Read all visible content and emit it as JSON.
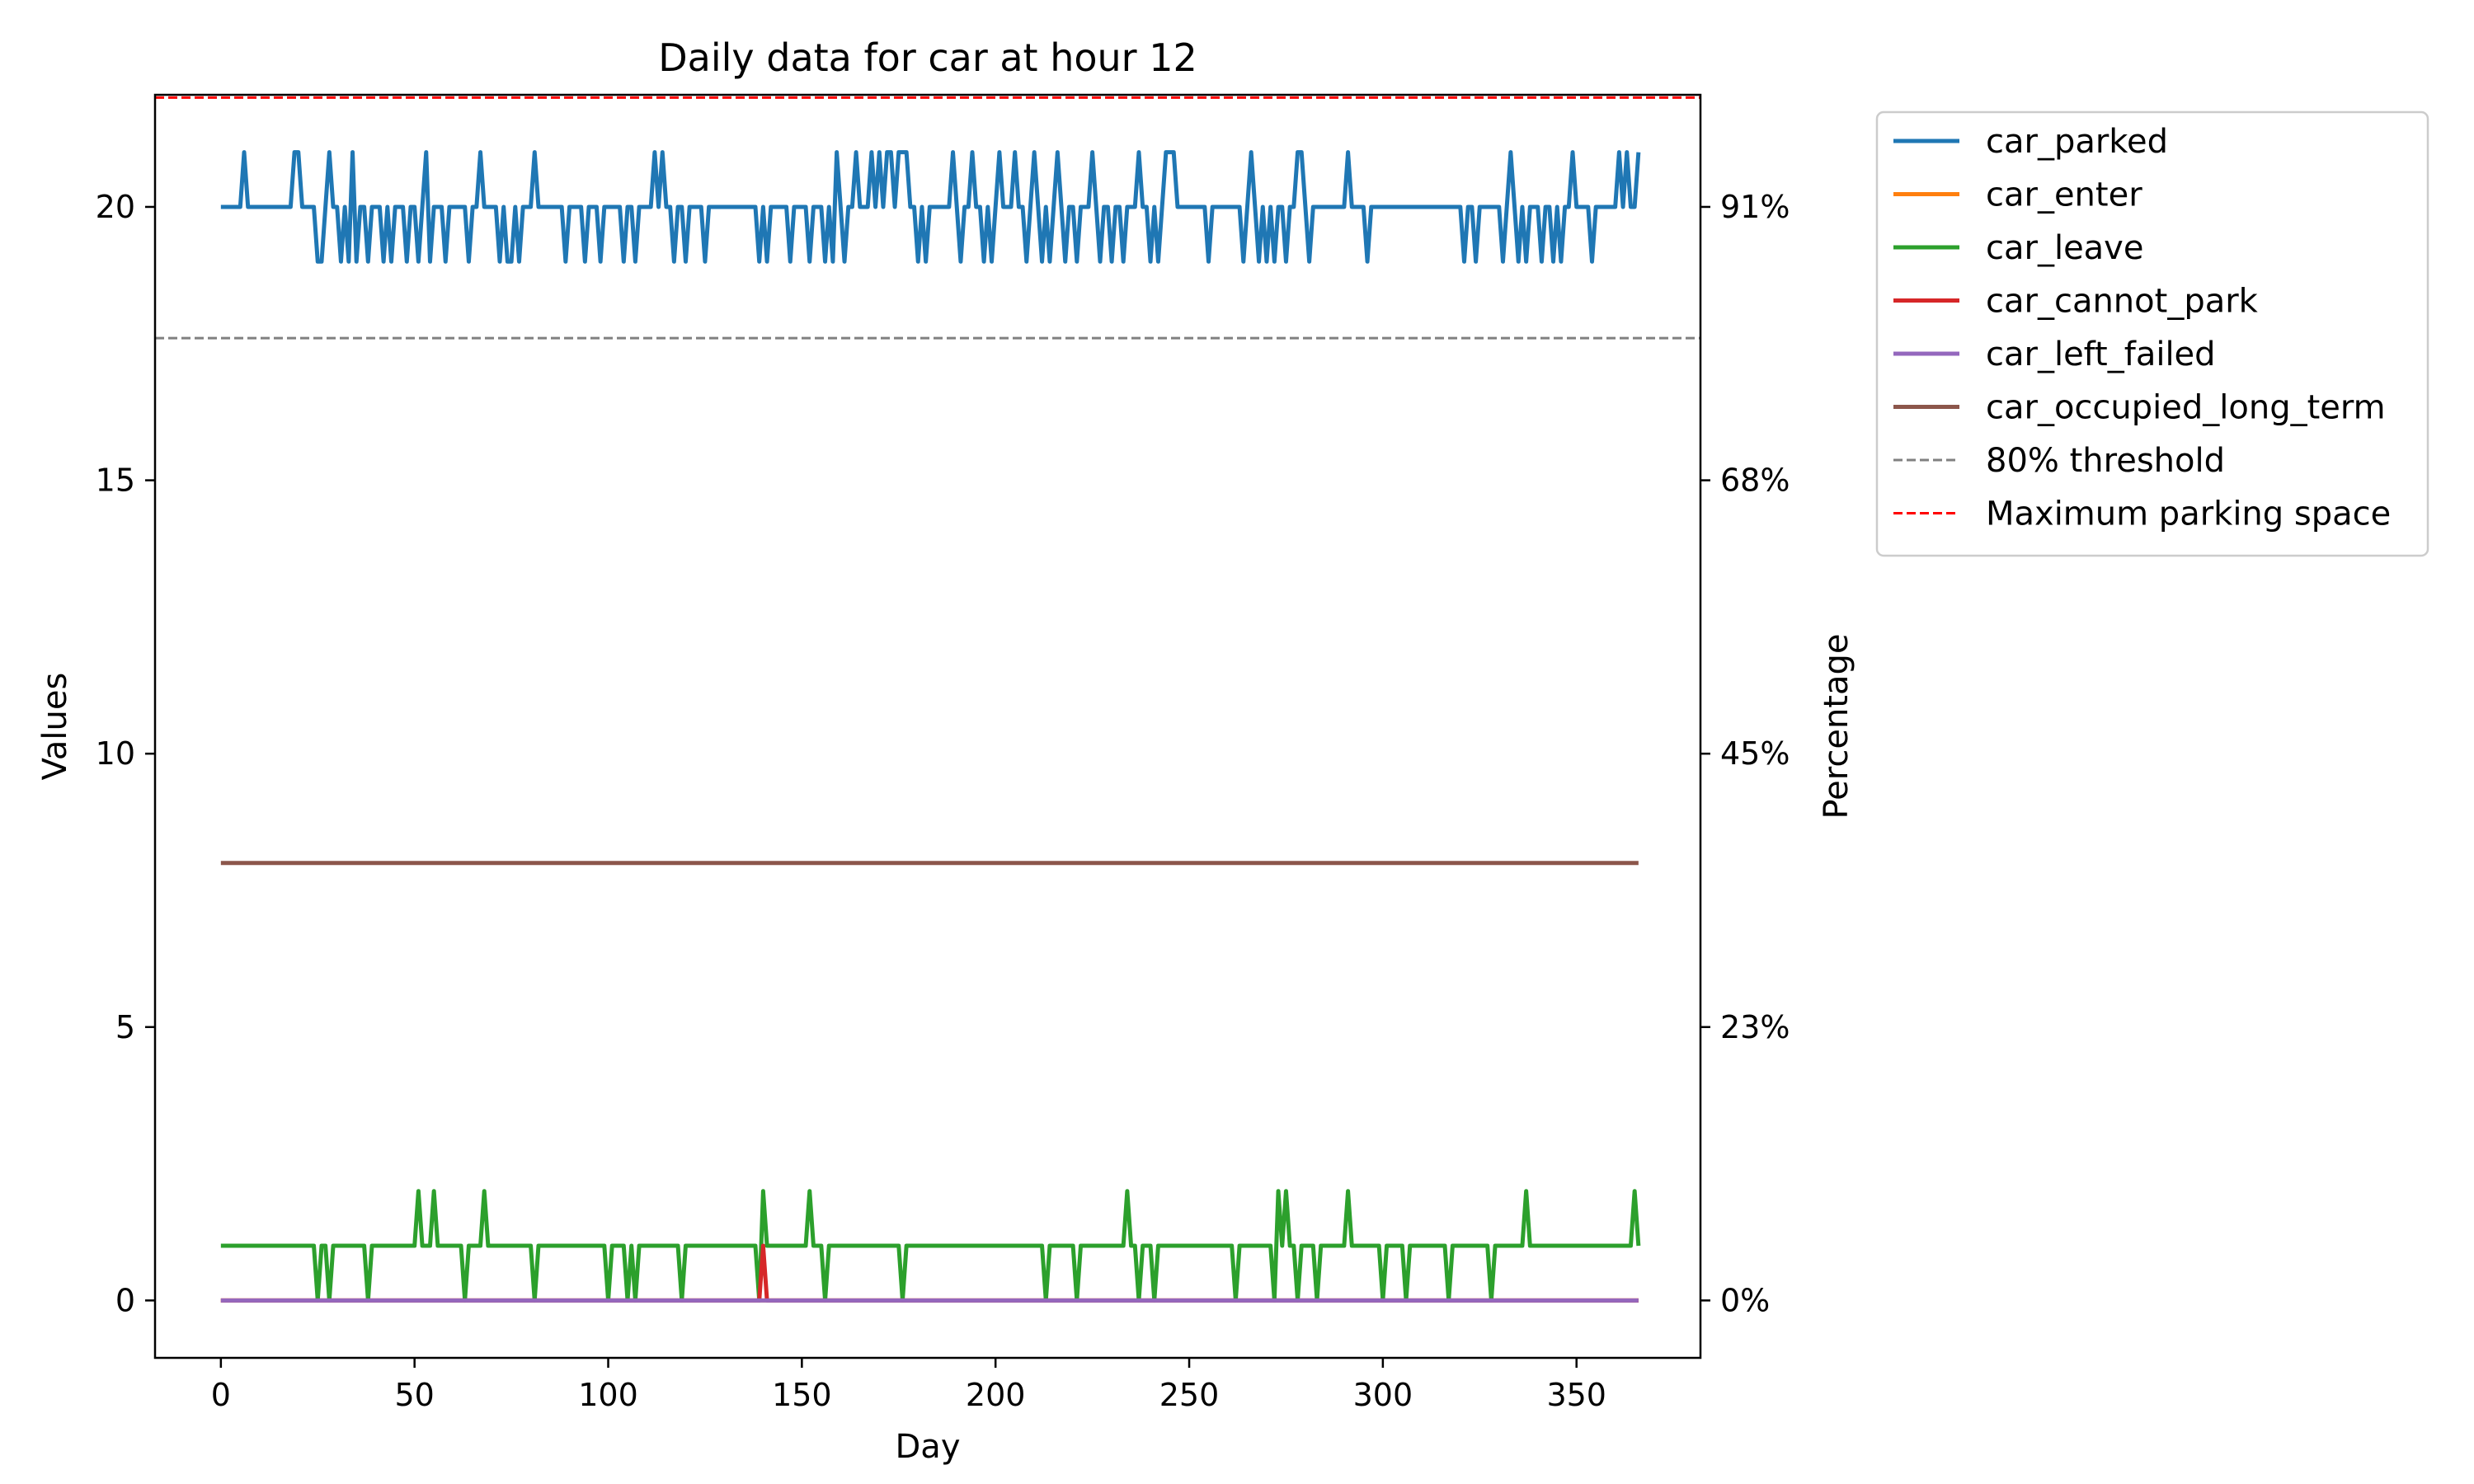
{
  "chart_data": {
    "type": "line",
    "title": "Daily data for car at hour 12",
    "xlabel": "Day",
    "ylabel": "Values",
    "y2label": "Percentage",
    "xlim": [
      -17,
      382
    ],
    "ylim": [
      -1.05,
      22.05
    ],
    "x_ticks": [
      0,
      50,
      100,
      150,
      200,
      250,
      300,
      350
    ],
    "y_ticks": [
      0,
      5,
      10,
      15,
      20
    ],
    "y2_ticks": [
      {
        "value": 0,
        "label": "0%"
      },
      {
        "value": 5,
        "label": "23%"
      },
      {
        "value": 10,
        "label": "45%"
      },
      {
        "value": 15,
        "label": "68%"
      },
      {
        "value": 20,
        "label": "91%"
      }
    ],
    "legend_position": "outside right, top",
    "series": [
      {
        "name": "car_parked",
        "color": "#1f77b4",
        "base": 20,
        "events": [
          [
            6,
            21
          ],
          [
            7,
            20
          ],
          [
            19,
            21
          ],
          [
            20,
            21
          ],
          [
            21,
            20
          ],
          [
            25,
            19
          ],
          [
            26,
            19
          ],
          [
            27,
            20
          ],
          [
            28,
            21
          ],
          [
            29,
            20
          ],
          [
            30,
            20
          ],
          [
            31,
            19
          ],
          [
            32,
            20
          ],
          [
            33,
            19
          ],
          [
            34,
            21
          ],
          [
            35,
            19
          ],
          [
            36,
            20
          ],
          [
            37,
            20
          ],
          [
            38,
            19
          ],
          [
            40,
            20
          ],
          [
            42,
            19
          ],
          [
            43,
            20
          ],
          [
            44,
            19
          ],
          [
            45,
            20
          ],
          [
            46,
            20
          ],
          [
            47,
            20
          ],
          [
            48,
            19
          ],
          [
            49,
            20
          ],
          [
            50,
            20
          ],
          [
            51,
            19
          ],
          [
            52,
            20
          ],
          [
            53,
            21
          ],
          [
            54,
            19
          ],
          [
            55,
            20
          ],
          [
            57,
            20
          ],
          [
            58,
            19
          ],
          [
            63,
            20
          ],
          [
            64,
            19
          ],
          [
            66,
            20
          ],
          [
            67,
            21
          ],
          [
            68,
            20
          ],
          [
            70,
            20
          ],
          [
            72,
            19
          ],
          [
            73,
            20
          ],
          [
            74,
            19
          ],
          [
            75,
            19
          ],
          [
            76,
            20
          ],
          [
            77,
            19
          ],
          [
            80,
            20
          ],
          [
            81,
            21
          ],
          [
            82,
            20
          ],
          [
            89,
            19
          ],
          [
            90,
            20
          ],
          [
            94,
            19
          ],
          [
            95,
            20
          ],
          [
            98,
            19
          ],
          [
            101,
            20
          ],
          [
            104,
            19
          ],
          [
            105,
            20
          ],
          [
            107,
            19
          ],
          [
            108,
            20
          ],
          [
            111,
            20
          ],
          [
            112,
            21
          ],
          [
            113,
            20
          ],
          [
            114,
            21
          ],
          [
            115,
            20
          ],
          [
            117,
            19
          ],
          [
            119,
            20
          ],
          [
            120,
            19
          ],
          [
            121,
            20
          ],
          [
            124,
            20
          ],
          [
            125,
            19
          ],
          [
            126,
            20
          ],
          [
            139,
            19
          ],
          [
            140,
            20
          ],
          [
            141,
            19
          ],
          [
            142,
            20
          ],
          [
            147,
            19
          ],
          [
            148,
            20
          ],
          [
            152,
            19
          ],
          [
            153,
            20
          ],
          [
            155,
            20
          ],
          [
            156,
            19
          ],
          [
            157,
            20
          ],
          [
            158,
            19
          ],
          [
            159,
            21
          ],
          [
            160,
            20
          ],
          [
            161,
            19
          ],
          [
            162,
            20
          ],
          [
            164,
            21
          ],
          [
            165,
            20
          ],
          [
            167,
            20
          ],
          [
            168,
            21
          ],
          [
            169,
            20
          ],
          [
            170,
            21
          ],
          [
            171,
            20
          ],
          [
            172,
            21
          ],
          [
            173,
            21
          ],
          [
            174,
            20
          ],
          [
            175,
            21
          ],
          [
            176,
            21
          ],
          [
            177,
            21
          ],
          [
            178,
            20
          ],
          [
            180,
            19
          ],
          [
            181,
            20
          ],
          [
            182,
            19
          ],
          [
            184,
            20
          ],
          [
            188,
            20
          ],
          [
            189,
            21
          ],
          [
            190,
            20
          ],
          [
            191,
            19
          ],
          [
            192,
            20
          ],
          [
            193,
            20
          ],
          [
            194,
            21
          ],
          [
            195,
            20
          ],
          [
            197,
            19
          ],
          [
            198,
            20
          ],
          [
            199,
            19
          ],
          [
            200,
            20
          ],
          [
            201,
            21
          ],
          [
            202,
            20
          ],
          [
            204,
            20
          ],
          [
            205,
            21
          ],
          [
            206,
            20
          ],
          [
            208,
            19
          ],
          [
            209,
            20
          ],
          [
            210,
            21
          ],
          [
            211,
            20
          ],
          [
            212,
            19
          ],
          [
            213,
            20
          ],
          [
            214,
            19
          ],
          [
            215,
            20
          ],
          [
            216,
            21
          ],
          [
            217,
            20
          ],
          [
            218,
            19
          ],
          [
            219,
            20
          ],
          [
            221,
            19
          ],
          [
            222,
            20
          ],
          [
            224,
            20
          ],
          [
            225,
            21
          ],
          [
            226,
            20
          ],
          [
            227,
            19
          ],
          [
            228,
            20
          ],
          [
            229,
            20
          ],
          [
            230,
            19
          ],
          [
            231,
            20
          ],
          [
            232,
            20
          ],
          [
            233,
            19
          ],
          [
            234,
            20
          ],
          [
            236,
            20
          ],
          [
            237,
            21
          ],
          [
            238,
            20
          ],
          [
            240,
            19
          ],
          [
            241,
            20
          ],
          [
            242,
            19
          ],
          [
            243,
            20
          ],
          [
            244,
            21
          ],
          [
            245,
            21
          ],
          [
            246,
            21
          ],
          [
            247,
            20
          ],
          [
            254,
            20
          ],
          [
            255,
            19
          ],
          [
            256,
            20
          ],
          [
            263,
            20
          ],
          [
            264,
            19
          ],
          [
            265,
            20
          ],
          [
            266,
            21
          ],
          [
            267,
            20
          ],
          [
            268,
            19
          ],
          [
            269,
            20
          ],
          [
            270,
            19
          ],
          [
            271,
            20
          ],
          [
            272,
            19
          ],
          [
            273,
            20
          ],
          [
            274,
            20
          ],
          [
            275,
            19
          ],
          [
            276,
            20
          ],
          [
            278,
            21
          ],
          [
            279,
            21
          ],
          [
            280,
            20
          ],
          [
            281,
            19
          ],
          [
            282,
            20
          ],
          [
            285,
            20
          ],
          [
            291,
            21
          ],
          [
            292,
            20
          ],
          [
            296,
            19
          ],
          [
            297,
            20
          ],
          [
            321,
            19
          ],
          [
            322,
            20
          ],
          [
            323,
            20
          ],
          [
            324,
            19
          ],
          [
            325,
            20
          ],
          [
            330,
            20
          ],
          [
            331,
            19
          ],
          [
            332,
            20
          ],
          [
            333,
            21
          ],
          [
            334,
            20
          ],
          [
            335,
            19
          ],
          [
            336,
            20
          ],
          [
            337,
            19
          ],
          [
            338,
            20
          ],
          [
            340,
            20
          ],
          [
            341,
            19
          ],
          [
            342,
            20
          ],
          [
            344,
            19
          ],
          [
            345,
            20
          ],
          [
            346,
            19
          ],
          [
            347,
            20
          ],
          [
            348,
            20
          ],
          [
            349,
            21
          ],
          [
            350,
            20
          ],
          [
            354,
            19
          ],
          [
            355,
            20
          ],
          [
            358,
            20
          ],
          [
            359,
            20
          ],
          [
            360,
            20
          ],
          [
            361,
            21
          ],
          [
            362,
            20
          ],
          [
            363,
            21
          ],
          [
            364,
            20
          ],
          [
            365,
            20
          ],
          [
            366,
            21
          ]
        ]
      },
      {
        "name": "car_enter",
        "color": "#ff7f0e",
        "base": 0,
        "events": []
      },
      {
        "name": "car_leave",
        "color": "#2ca02c",
        "base": 1,
        "events": [
          [
            25,
            0
          ],
          [
            26,
            1
          ],
          [
            27,
            1
          ],
          [
            28,
            0
          ],
          [
            29,
            1
          ],
          [
            38,
            0
          ],
          [
            39,
            1
          ],
          [
            51,
            2
          ],
          [
            52,
            1
          ],
          [
            55,
            2
          ],
          [
            56,
            1
          ],
          [
            63,
            0
          ],
          [
            64,
            1
          ],
          [
            68,
            2
          ],
          [
            69,
            1
          ],
          [
            81,
            0
          ],
          [
            82,
            1
          ],
          [
            100,
            0
          ],
          [
            101,
            1
          ],
          [
            105,
            0
          ],
          [
            106,
            1
          ],
          [
            107,
            0
          ],
          [
            108,
            1
          ],
          [
            119,
            0
          ],
          [
            120,
            1
          ],
          [
            139,
            0
          ],
          [
            140,
            2
          ],
          [
            141,
            1
          ],
          [
            152,
            2
          ],
          [
            153,
            1
          ],
          [
            156,
            0
          ],
          [
            157,
            1
          ],
          [
            176,
            0
          ],
          [
            177,
            1
          ],
          [
            213,
            0
          ],
          [
            214,
            1
          ],
          [
            221,
            0
          ],
          [
            222,
            1
          ],
          [
            234,
            2
          ],
          [
            235,
            1
          ],
          [
            237,
            0
          ],
          [
            238,
            1
          ],
          [
            241,
            0
          ],
          [
            242,
            1
          ],
          [
            262,
            0
          ],
          [
            263,
            1
          ],
          [
            272,
            0
          ],
          [
            273,
            2
          ],
          [
            274,
            1
          ],
          [
            275,
            2
          ],
          [
            276,
            1
          ],
          [
            278,
            0
          ],
          [
            279,
            1
          ],
          [
            283,
            0
          ],
          [
            284,
            1
          ],
          [
            291,
            2
          ],
          [
            292,
            1
          ],
          [
            300,
            0
          ],
          [
            301,
            1
          ],
          [
            306,
            0
          ],
          [
            307,
            1
          ],
          [
            317,
            0
          ],
          [
            318,
            1
          ],
          [
            328,
            0
          ],
          [
            329,
            1
          ],
          [
            337,
            2
          ],
          [
            338,
            1
          ],
          [
            365,
            2
          ],
          [
            366,
            1
          ]
        ]
      },
      {
        "name": "car_cannot_park",
        "color": "#d62728",
        "base": 0,
        "events": [
          [
            140,
            1
          ],
          [
            141,
            0
          ]
        ]
      },
      {
        "name": "car_left_failed",
        "color": "#9467bd",
        "base": 0,
        "events": []
      },
      {
        "name": "car_occupied_long_term",
        "color": "#8c564b",
        "base": 8,
        "events": []
      }
    ],
    "x_range": [
      0,
      366
    ],
    "hlines": [
      {
        "name": "80% threshold",
        "value": 17.6,
        "color": "#808080",
        "style": "dashed"
      },
      {
        "name": "Maximum parking space",
        "value": 22,
        "color": "#ff0000",
        "style": "dashed"
      }
    ]
  }
}
